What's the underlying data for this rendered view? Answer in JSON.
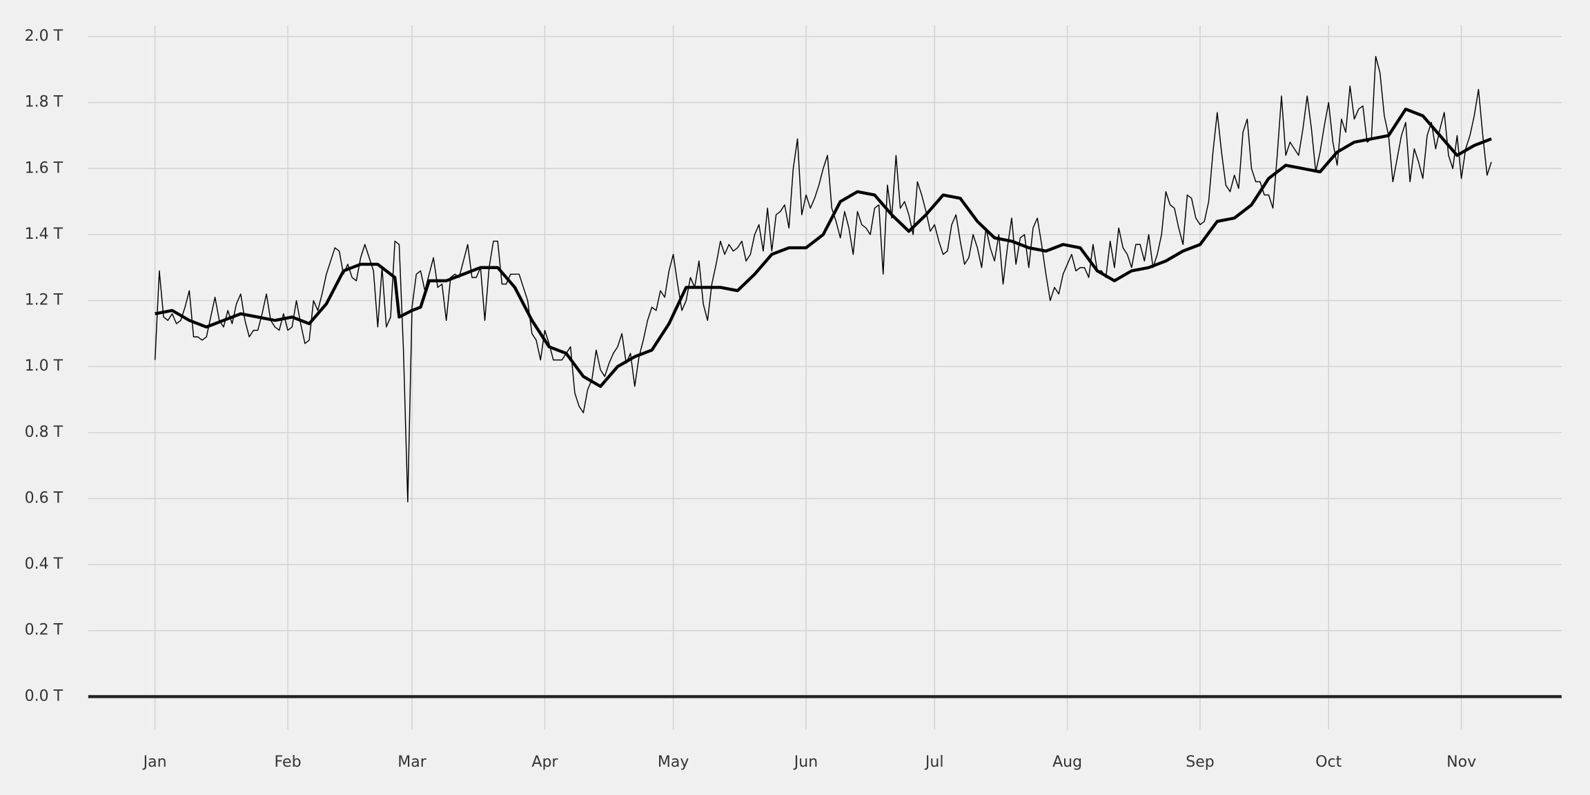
{
  "chart_data": {
    "type": "line",
    "grid": true,
    "hline": 0,
    "xlim": [
      -15.6,
      328.4
    ],
    "ylim": [
      -0.1,
      2.034
    ],
    "xticks": [
      {
        "value": 0,
        "label": "Jan"
      },
      {
        "value": 31,
        "label": "Feb"
      },
      {
        "value": 60,
        "label": "Mar"
      },
      {
        "value": 91,
        "label": "Apr"
      },
      {
        "value": 121,
        "label": "May"
      },
      {
        "value": 152,
        "label": "Jun"
      },
      {
        "value": 182,
        "label": "Jul"
      },
      {
        "value": 213,
        "label": "Aug"
      },
      {
        "value": 244,
        "label": "Sep"
      },
      {
        "value": 274,
        "label": "Oct"
      },
      {
        "value": 305,
        "label": "Nov"
      }
    ],
    "yticks": [
      {
        "value": 0,
        "label": "0.0 T"
      },
      {
        "value": 0.2,
        "label": "0.2 T"
      },
      {
        "value": 0.4,
        "label": "0.4 T"
      },
      {
        "value": 0.6,
        "label": "0.6 T"
      },
      {
        "value": 0.8,
        "label": "0.8 T"
      },
      {
        "value": 1.0,
        "label": "1.0 T"
      },
      {
        "value": 1.2,
        "label": "1.2 T"
      },
      {
        "value": 1.4,
        "label": "1.4 T"
      },
      {
        "value": 1.6,
        "label": "1.6 T"
      },
      {
        "value": 1.8,
        "label": "1.8 T"
      },
      {
        "value": 2.0,
        "label": "2.0 T"
      }
    ],
    "series": [
      {
        "color": "#000000",
        "x": [
          0,
          1,
          2,
          3,
          4,
          5,
          6,
          7,
          8,
          9,
          10,
          11,
          12,
          13,
          14,
          15,
          16,
          17,
          18,
          19,
          20,
          21,
          22,
          23,
          24,
          25,
          26,
          27,
          28,
          29,
          30,
          31,
          32,
          33,
          34,
          35,
          36,
          37,
          38,
          39,
          40,
          41,
          42,
          43,
          44,
          45,
          46,
          47,
          48,
          49,
          50,
          51,
          52,
          53,
          54,
          55,
          56,
          57,
          58,
          59,
          60,
          61,
          62,
          63,
          64,
          65,
          66,
          67,
          68,
          69,
          70,
          71,
          72,
          73,
          74,
          75,
          76,
          77,
          78,
          79,
          80,
          81,
          82,
          83,
          84,
          85,
          86,
          87,
          88,
          89,
          90,
          91,
          92,
          93,
          94,
          95,
          96,
          97,
          98,
          99,
          100,
          101,
          102,
          103,
          104,
          105,
          106,
          107,
          108,
          109,
          110,
          111,
          112,
          113,
          114,
          115,
          116,
          117,
          118,
          119,
          120,
          121,
          122,
          123,
          124,
          125,
          126,
          127,
          128,
          129,
          130,
          131,
          132,
          133,
          134,
          135,
          136,
          137,
          138,
          139,
          140,
          141,
          142,
          143,
          144,
          145,
          146,
          147,
          148,
          149,
          150,
          151,
          152,
          153,
          154,
          155,
          156,
          157,
          158,
          159,
          160,
          161,
          162,
          163,
          164,
          165,
          166,
          167,
          168,
          169,
          170,
          171,
          172,
          173,
          174,
          175,
          176,
          177,
          178,
          179,
          180,
          181,
          182,
          183,
          184,
          185,
          186,
          187,
          188,
          189,
          190,
          191,
          192,
          193,
          194,
          195,
          196,
          197,
          198,
          199,
          200,
          201,
          202,
          203,
          204,
          205,
          206,
          207,
          208,
          209,
          210,
          211,
          212,
          213,
          214,
          215,
          216,
          217,
          218,
          219,
          220,
          221,
          222,
          223,
          224,
          225,
          226,
          227,
          228,
          229,
          230,
          231,
          232,
          233,
          234,
          235,
          236,
          237,
          238,
          239,
          240,
          241,
          242,
          243,
          244,
          245,
          246,
          247,
          248,
          249,
          250,
          251,
          252,
          253,
          254,
          255,
          256,
          257,
          258,
          259,
          260,
          261,
          262,
          263,
          264,
          265,
          266,
          267,
          268,
          269,
          270,
          271,
          272,
          273,
          274,
          275,
          276,
          277,
          278,
          279,
          280,
          281,
          282,
          283,
          284,
          285,
          286,
          287,
          288,
          289,
          290,
          291,
          292,
          293,
          294,
          295,
          296,
          297,
          298,
          299,
          300,
          301,
          302,
          303,
          304,
          305,
          306,
          307,
          308,
          309,
          310,
          311,
          312
        ],
        "values": [
          1.02,
          1.29,
          1.15,
          1.14,
          1.16,
          1.13,
          1.14,
          1.18,
          1.23,
          1.09,
          1.09,
          1.08,
          1.09,
          1.15,
          1.21,
          1.14,
          1.12,
          1.17,
          1.13,
          1.19,
          1.22,
          1.14,
          1.09,
          1.11,
          1.11,
          1.16,
          1.22,
          1.14,
          1.12,
          1.11,
          1.16,
          1.11,
          1.12,
          1.2,
          1.13,
          1.07,
          1.08,
          1.2,
          1.17,
          1.22,
          1.28,
          1.32,
          1.36,
          1.35,
          1.28,
          1.31,
          1.27,
          1.26,
          1.33,
          1.37,
          1.33,
          1.29,
          1.12,
          1.3,
          1.12,
          1.15,
          1.38,
          1.37,
          1.05,
          0.59,
          1.18,
          1.28,
          1.29,
          1.23,
          1.28,
          1.33,
          1.24,
          1.25,
          1.14,
          1.27,
          1.28,
          1.27,
          1.32,
          1.37,
          1.27,
          1.27,
          1.3,
          1.14,
          1.3,
          1.38,
          1.38,
          1.25,
          1.25,
          1.28,
          1.28,
          1.28,
          1.24,
          1.2,
          1.1,
          1.08,
          1.02,
          1.11,
          1.07,
          1.02,
          1.02,
          1.02,
          1.04,
          1.06,
          0.92,
          0.88,
          0.86,
          0.93,
          0.96,
          1.05,
          0.99,
          0.97,
          1.01,
          1.04,
          1.06,
          1.1,
          1.01,
          1.04,
          0.94,
          1.03,
          1.08,
          1.14,
          1.18,
          1.17,
          1.23,
          1.21,
          1.29,
          1.34,
          1.25,
          1.17,
          1.2,
          1.27,
          1.24,
          1.32,
          1.19,
          1.14,
          1.25,
          1.31,
          1.38,
          1.34,
          1.37,
          1.35,
          1.36,
          1.38,
          1.32,
          1.34,
          1.4,
          1.43,
          1.35,
          1.48,
          1.35,
          1.46,
          1.47,
          1.49,
          1.42,
          1.6,
          1.69,
          1.46,
          1.52,
          1.48,
          1.51,
          1.55,
          1.6,
          1.64,
          1.48,
          1.44,
          1.39,
          1.47,
          1.42,
          1.34,
          1.47,
          1.43,
          1.42,
          1.4,
          1.48,
          1.49,
          1.28,
          1.55,
          1.45,
          1.64,
          1.48,
          1.5,
          1.46,
          1.4,
          1.56,
          1.52,
          1.47,
          1.41,
          1.43,
          1.38,
          1.34,
          1.35,
          1.43,
          1.46,
          1.38,
          1.31,
          1.33,
          1.4,
          1.36,
          1.3,
          1.42,
          1.36,
          1.32,
          1.4,
          1.25,
          1.36,
          1.45,
          1.31,
          1.39,
          1.4,
          1.3,
          1.42,
          1.45,
          1.37,
          1.28,
          1.2,
          1.24,
          1.22,
          1.28,
          1.31,
          1.34,
          1.29,
          1.3,
          1.3,
          1.27,
          1.37,
          1.29,
          1.29,
          1.27,
          1.38,
          1.3,
          1.42,
          1.36,
          1.34,
          1.3,
          1.37,
          1.37,
          1.32,
          1.4,
          1.3,
          1.34,
          1.4,
          1.53,
          1.49,
          1.48,
          1.42,
          1.37,
          1.52,
          1.51,
          1.45,
          1.43,
          1.44,
          1.5,
          1.65,
          1.77,
          1.65,
          1.55,
          1.53,
          1.58,
          1.54,
          1.71,
          1.75,
          1.6,
          1.56,
          1.56,
          1.52,
          1.52,
          1.48,
          1.64,
          1.82,
          1.64,
          1.68,
          1.66,
          1.64,
          1.72,
          1.82,
          1.72,
          1.59,
          1.65,
          1.73,
          1.8,
          1.68,
          1.61,
          1.75,
          1.71,
          1.85,
          1.75,
          1.78,
          1.79,
          1.68,
          1.69,
          1.94,
          1.89,
          1.76,
          1.7,
          1.56,
          1.63,
          1.7,
          1.74,
          1.56,
          1.66,
          1.62,
          1.57,
          1.7,
          1.74,
          1.66,
          1.72,
          1.77,
          1.64,
          1.6,
          1.7,
          1.57,
          1.66,
          1.7,
          1.76,
          1.84,
          1.7,
          1.58,
          1.62
        ]
      },
      {
        "color": "#000000",
        "x": [
          0,
          4,
          8,
          12,
          16,
          20,
          24,
          28,
          32,
          36,
          40,
          44,
          48,
          52,
          56,
          57,
          60,
          62,
          64,
          68,
          72,
          76,
          80,
          84,
          88,
          92,
          96,
          100,
          104,
          108,
          112,
          116,
          120,
          124,
          128,
          132,
          136,
          140,
          144,
          148,
          152,
          156,
          160,
          164,
          168,
          172,
          176,
          180,
          184,
          188,
          192,
          196,
          200,
          204,
          208,
          212,
          216,
          220,
          224,
          228,
          232,
          236,
          240,
          244,
          248,
          252,
          256,
          260,
          264,
          268,
          272,
          276,
          280,
          284,
          288,
          292,
          296,
          300,
          304,
          308,
          312
        ],
        "values": [
          1.16,
          1.17,
          1.14,
          1.12,
          1.14,
          1.16,
          1.15,
          1.14,
          1.15,
          1.13,
          1.19,
          1.29,
          1.31,
          1.31,
          1.27,
          1.15,
          1.17,
          1.18,
          1.26,
          1.26,
          1.28,
          1.3,
          1.3,
          1.24,
          1.14,
          1.06,
          1.04,
          0.97,
          0.94,
          1.0,
          1.03,
          1.05,
          1.13,
          1.24,
          1.24,
          1.24,
          1.23,
          1.28,
          1.34,
          1.36,
          1.36,
          1.4,
          1.5,
          1.53,
          1.52,
          1.46,
          1.41,
          1.46,
          1.52,
          1.51,
          1.44,
          1.39,
          1.38,
          1.36,
          1.35,
          1.37,
          1.36,
          1.29,
          1.26,
          1.29,
          1.3,
          1.32,
          1.35,
          1.37,
          1.44,
          1.45,
          1.49,
          1.57,
          1.61,
          1.6,
          1.59,
          1.65,
          1.68,
          1.69,
          1.7,
          1.78,
          1.76,
          1.7,
          1.64,
          1.67,
          1.69
        ]
      }
    ]
  }
}
